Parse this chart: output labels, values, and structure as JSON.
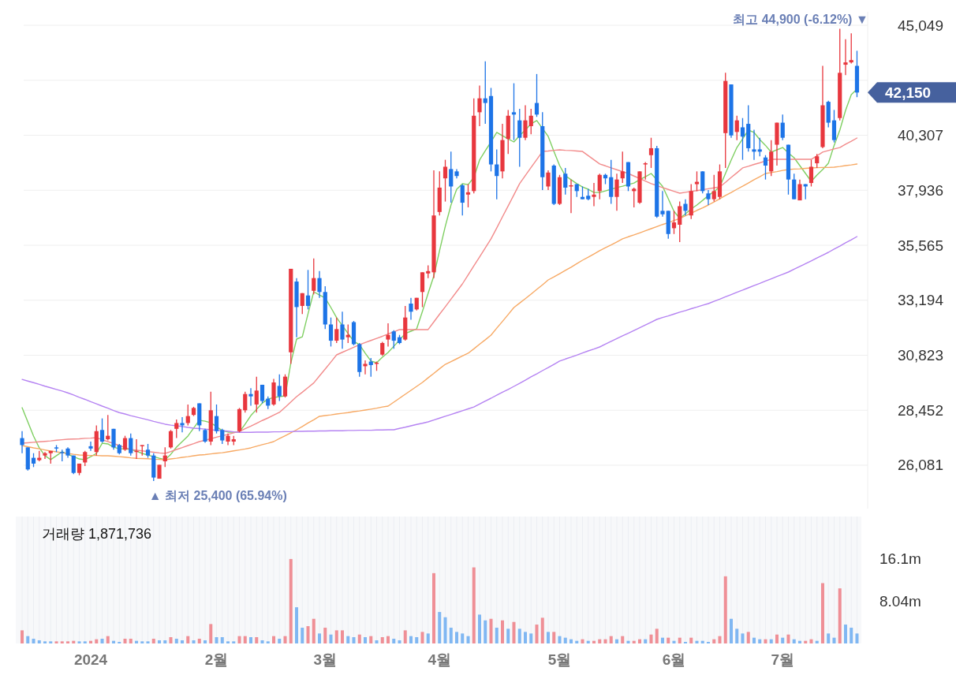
{
  "chart_data": [
    {
      "type": "candlestick",
      "categories": [
        null,
        null,
        null,
        null,
        null,
        null,
        null,
        null,
        null,
        null,
        null,
        null,
        null,
        null,
        null,
        null,
        null,
        null,
        null,
        null,
        null,
        null,
        null,
        null,
        null,
        null,
        null,
        null,
        null,
        null,
        null,
        null,
        null,
        null,
        null,
        null,
        null,
        null,
        null,
        null,
        null,
        null,
        null,
        null,
        null,
        null,
        null,
        null,
        null,
        null,
        null,
        null,
        null,
        null,
        null,
        null,
        null,
        null,
        null,
        null,
        null,
        null,
        null,
        null,
        null,
        null,
        null,
        null,
        null,
        null,
        null,
        null,
        null,
        null,
        null,
        null,
        null,
        null,
        null,
        null,
        null,
        null,
        null,
        null,
        null,
        null,
        null,
        null,
        null,
        null,
        null,
        null,
        null,
        null,
        null,
        null,
        null,
        null,
        null,
        null,
        null,
        null,
        null,
        null,
        null,
        null,
        null,
        null,
        null,
        null,
        null,
        null,
        null,
        null,
        null,
        null,
        null,
        null,
        null,
        null,
        null,
        null,
        null,
        null,
        null,
        null,
        null,
        null,
        null,
        null,
        null,
        null,
        null,
        null,
        null,
        null,
        null,
        null,
        null,
        null,
        null,
        null,
        null,
        null,
        null,
        null,
        null
      ],
      "ohlc": [
        [
          27250,
          27550,
          26600,
          26950
        ],
        [
          26850,
          26850,
          25850,
          25900
        ],
        [
          26400,
          26600,
          26000,
          26150
        ],
        [
          26300,
          26700,
          26250,
          26400
        ],
        [
          26500,
          26650,
          26350,
          26600
        ],
        [
          26600,
          26700,
          26150,
          26700
        ],
        [
          26850,
          26950,
          26650,
          26800
        ],
        [
          26650,
          26750,
          26250,
          26600
        ],
        [
          26800,
          26850,
          26400,
          26500
        ],
        [
          26500,
          26500,
          25700,
          25750
        ],
        [
          25750,
          26150,
          25650,
          26150
        ],
        [
          26200,
          26700,
          26050,
          26650
        ],
        [
          26900,
          27100,
          26700,
          26800
        ],
        [
          26650,
          27800,
          26500,
          27550
        ],
        [
          27600,
          28100,
          27050,
          27100
        ],
        [
          27200,
          28250,
          27150,
          27350
        ],
        [
          27650,
          27650,
          26750,
          26850
        ],
        [
          26950,
          27000,
          26550,
          26600
        ],
        [
          26750,
          27350,
          26700,
          27250
        ],
        [
          27250,
          27450,
          26500,
          26600
        ],
        [
          26650,
          27200,
          26350,
          26700
        ],
        [
          26900,
          26950,
          26500,
          26950
        ],
        [
          26750,
          27000,
          26400,
          26500
        ],
        [
          26500,
          26600,
          25400,
          25550
        ],
        [
          25500,
          26100,
          25500,
          26100
        ],
        [
          26250,
          26850,
          26000,
          26500
        ],
        [
          26850,
          27600,
          26800,
          27550
        ],
        [
          27650,
          28050,
          27250,
          27900
        ],
        [
          27900,
          28150,
          27500,
          27800
        ],
        [
          27900,
          28700,
          27800,
          28200
        ],
        [
          28250,
          28600,
          28200,
          28550
        ],
        [
          28750,
          28750,
          27550,
          27800
        ],
        [
          27600,
          27650,
          27050,
          27100
        ],
        [
          27100,
          29250,
          26950,
          28450
        ],
        [
          28200,
          28700,
          27450,
          27550
        ],
        [
          27600,
          27650,
          27000,
          27150
        ],
        [
          27100,
          27450,
          26950,
          27350
        ],
        [
          27100,
          27350,
          26950,
          27200
        ],
        [
          27550,
          28550,
          27500,
          28500
        ],
        [
          28450,
          29250,
          28350,
          29150
        ],
        [
          29150,
          29400,
          28650,
          29050
        ],
        [
          28700,
          29900,
          28350,
          29300
        ],
        [
          29550,
          29550,
          28750,
          28850
        ],
        [
          28950,
          29050,
          28500,
          28650
        ],
        [
          28700,
          29800,
          28650,
          29650
        ],
        [
          29500,
          30000,
          28850,
          29050
        ],
        [
          29050,
          30000,
          29000,
          29900
        ],
        [
          30950,
          34550,
          30450,
          34550
        ],
        [
          34000,
          34150,
          31600,
          32900
        ],
        [
          32950,
          33500,
          32600,
          33500
        ],
        [
          33400,
          34500,
          32800,
          32950
        ],
        [
          33600,
          35000,
          33450,
          34150
        ],
        [
          34150,
          34450,
          33300,
          33550
        ],
        [
          33550,
          33800,
          31950,
          32150
        ],
        [
          32150,
          32450,
          31200,
          31450
        ],
        [
          31450,
          32450,
          31350,
          31950
        ],
        [
          32150,
          32700,
          31100,
          31500
        ],
        [
          31600,
          32150,
          31350,
          31700
        ],
        [
          32250,
          32300,
          31250,
          31300
        ],
        [
          31300,
          31350,
          29900,
          30100
        ],
        [
          30350,
          30600,
          30000,
          30450
        ],
        [
          30550,
          30700,
          29900,
          30400
        ],
        [
          30450,
          30550,
          30150,
          30500
        ],
        [
          30850,
          31400,
          30800,
          31350
        ],
        [
          31500,
          32200,
          31200,
          31700
        ],
        [
          31850,
          31900,
          31100,
          31450
        ],
        [
          31600,
          31700,
          31300,
          31350
        ],
        [
          31500,
          32950,
          31450,
          32450
        ],
        [
          33050,
          33300,
          32350,
          32700
        ],
        [
          32800,
          33300,
          32750,
          33300
        ],
        [
          33550,
          34400,
          32900,
          34400
        ],
        [
          34350,
          34700,
          34150,
          34450
        ],
        [
          34400,
          38800,
          34150,
          36850
        ],
        [
          37000,
          38750,
          36850,
          38050
        ],
        [
          38450,
          39250,
          37450,
          38950
        ],
        [
          38850,
          39600,
          37400,
          38100
        ],
        [
          38750,
          38850,
          38450,
          38550
        ],
        [
          38150,
          38200,
          36850,
          37400
        ],
        [
          37750,
          38200,
          37200,
          37850
        ],
        [
          37900,
          41900,
          37800,
          41150
        ],
        [
          41300,
          42450,
          40700,
          41900
        ],
        [
          41900,
          43500,
          40800,
          41700
        ],
        [
          42000,
          42350,
          38750,
          39050
        ],
        [
          39050,
          39700,
          37550,
          38550
        ],
        [
          38750,
          40800,
          38450,
          40100
        ],
        [
          40150,
          41400,
          39500,
          41150
        ],
        [
          41300,
          42550,
          40100,
          41200
        ],
        [
          40950,
          41450,
          38950,
          40200
        ],
        [
          40200,
          41600,
          40100,
          40950
        ],
        [
          40700,
          41450,
          40350,
          41150
        ],
        [
          41700,
          42950,
          41100,
          41200
        ],
        [
          40700,
          41300,
          37950,
          38500
        ],
        [
          38100,
          38800,
          37950,
          38700
        ],
        [
          39000,
          39050,
          37300,
          37350
        ],
        [
          37350,
          38600,
          37300,
          38500
        ],
        [
          38650,
          38900,
          37750,
          38050
        ],
        [
          38100,
          38400,
          36950,
          38150
        ],
        [
          38200,
          38200,
          37650,
          37900
        ],
        [
          37650,
          38100,
          37550,
          37550
        ],
        [
          37700,
          38000,
          37500,
          37550
        ],
        [
          37650,
          38250,
          37250,
          37750
        ],
        [
          37900,
          38650,
          37550,
          38600
        ],
        [
          38600,
          38650,
          38200,
          38450
        ],
        [
          38500,
          39250,
          37350,
          37650
        ],
        [
          37650,
          38650,
          37050,
          38400
        ],
        [
          38450,
          39600,
          38250,
          38750
        ],
        [
          39150,
          39150,
          37900,
          38100
        ],
        [
          37900,
          38050,
          37200,
          38000
        ],
        [
          37400,
          38750,
          37350,
          38750
        ],
        [
          39050,
          39150,
          38400,
          39100
        ],
        [
          39450,
          40200,
          38900,
          39750
        ],
        [
          39750,
          39850,
          36750,
          36800
        ],
        [
          37050,
          37900,
          36800,
          36900
        ],
        [
          37050,
          37050,
          35850,
          36050
        ],
        [
          36300,
          37050,
          36050,
          36550
        ],
        [
          36450,
          37450,
          35700,
          37250
        ],
        [
          37350,
          37550,
          36850,
          37050
        ],
        [
          36850,
          38200,
          36700,
          37900
        ],
        [
          38200,
          38750,
          37900,
          38300
        ],
        [
          38750,
          38750,
          37800,
          37900
        ],
        [
          37800,
          37950,
          37300,
          37550
        ],
        [
          37550,
          38600,
          37450,
          37900
        ],
        [
          37650,
          39050,
          37550,
          38750
        ],
        [
          40400,
          43000,
          38900,
          42650
        ],
        [
          42500,
          42500,
          40200,
          40300
        ],
        [
          40450,
          41150,
          40100,
          40950
        ],
        [
          40650,
          41050,
          39250,
          40250
        ],
        [
          40800,
          41600,
          39600,
          39750
        ],
        [
          39700,
          40550,
          39250,
          39600
        ],
        [
          39700,
          40200,
          39400,
          39600
        ],
        [
          39350,
          39450,
          38400,
          39000
        ],
        [
          38750,
          40100,
          38550,
          39600
        ],
        [
          39900,
          40850,
          39000,
          40850
        ],
        [
          40850,
          41200,
          40100,
          40200
        ],
        [
          39900,
          39900,
          37750,
          38400
        ],
        [
          38400,
          38650,
          37550,
          37550
        ],
        [
          37500,
          38400,
          37500,
          38200
        ],
        [
          38200,
          38200,
          37550,
          38100
        ],
        [
          38250,
          39250,
          38100,
          38950
        ],
        [
          39100,
          39500,
          38900,
          39400
        ],
        [
          39800,
          43300,
          39750,
          41600
        ],
        [
          41750,
          41800,
          40650,
          40850
        ],
        [
          40950,
          41400,
          40000,
          40100
        ],
        [
          41050,
          44900,
          40950,
          43000
        ],
        [
          43350,
          44450,
          42900,
          43450
        ],
        [
          43450,
          44700,
          43400,
          43550
        ],
        [
          43300,
          43950,
          41950,
          42150
        ]
      ],
      "series": [
        {
          "type": "line",
          "color": "#7fcf62",
          "values": [
            28560,
            27950,
            27340,
            26830,
            26490,
            26320,
            26490,
            26660,
            26550,
            26450,
            26350,
            26320,
            26450,
            26590,
            27030,
            27000,
            26860,
            26790,
            26790,
            26760,
            26690,
            26590,
            26520,
            26450,
            26380,
            26320,
            26550,
            26860,
            27100,
            27340,
            27680,
            28020,
            27980,
            27910,
            27740,
            27570,
            27510,
            27510,
            27510,
            27850,
            28220,
            28490,
            28760,
            28930,
            29000,
            29040,
            29070,
            30500,
            31520,
            31620,
            32610,
            33560,
            33420,
            33290,
            32880,
            32440,
            32100,
            31760,
            31420,
            31280,
            30910,
            30570,
            30500,
            30740,
            30940,
            31210,
            31480,
            31760,
            31860,
            31960,
            32710,
            33490,
            34240,
            35330,
            36380,
            37300,
            37980,
            38220,
            38180,
            38490,
            39240,
            39640,
            40020,
            40430,
            40290,
            40150,
            40020,
            40290,
            40530,
            40800,
            40940,
            40600,
            40260,
            39610,
            39000,
            38560,
            38390,
            38220,
            38080,
            37980,
            37840,
            37840,
            37910,
            37980,
            38050,
            38110,
            38180,
            38250,
            38390,
            38520,
            38660,
            38390,
            38110,
            37570,
            37030,
            36720,
            36920,
            37130,
            37300,
            37500,
            37710,
            37880,
            38080,
            38660,
            39240,
            39780,
            40150,
            40530,
            40430,
            40120,
            39870,
            39580,
            39680,
            39780,
            39540,
            39340,
            39000,
            38660,
            38320,
            38590,
            38830,
            39100,
            39870,
            40530,
            41380,
            42060,
            42300
          ]
        },
        {
          "type": "line",
          "color": "#f28b8b",
          "values": [
            27030,
            27050,
            27070,
            27090,
            27110,
            27130,
            27160,
            27180,
            27200,
            27210,
            27220,
            27240,
            27250,
            27270,
            27180,
            27100,
            27020,
            26930,
            26840,
            26760,
            26730,
            26700,
            26670,
            26640,
            26610,
            26590,
            26670,
            26760,
            26840,
            26930,
            27010,
            27100,
            27160,
            27220,
            27290,
            27350,
            27410,
            27480,
            27540,
            27660,
            27770,
            27890,
            28010,
            28120,
            28240,
            28360,
            28580,
            28810,
            29040,
            29230,
            29430,
            29630,
            29930,
            30230,
            30530,
            30840,
            30950,
            31060,
            31170,
            31280,
            31370,
            31460,
            31550,
            31640,
            31740,
            31830,
            31930,
            31930,
            31930,
            31930,
            31930,
            31930,
            32260,
            32590,
            32910,
            33240,
            33570,
            33900,
            34290,
            34680,
            35060,
            35450,
            35840,
            36310,
            36790,
            37260,
            37740,
            38220,
            38570,
            38920,
            39260,
            39610,
            39630,
            39660,
            39680,
            39660,
            39650,
            39630,
            39610,
            39430,
            39250,
            39070,
            38990,
            38900,
            38820,
            38740,
            38660,
            38550,
            38440,
            38330,
            38220,
            38140,
            38050,
            37970,
            37890,
            37810,
            37850,
            37890,
            37920,
            37960,
            38000,
            38040,
            38080,
            38280,
            38490,
            38690,
            38900,
            38970,
            39050,
            39120,
            39200,
            39270,
            39270,
            39270,
            39270,
            39270,
            39270,
            39270,
            39270,
            39420,
            39580,
            39650,
            39720,
            39780,
            39920,
            40050,
            40190
          ]
        },
        {
          "type": "line",
          "color": "#f7a964",
          "values": [
            26930,
            26880,
            26830,
            26790,
            26740,
            26690,
            26660,
            26620,
            26590,
            26550,
            26520,
            26510,
            26500,
            26500,
            26490,
            26490,
            26470,
            26450,
            26430,
            26400,
            26380,
            26370,
            26360,
            26340,
            26330,
            26320,
            26350,
            26380,
            26420,
            26450,
            26490,
            26520,
            26540,
            26570,
            26600,
            26620,
            26660,
            26700,
            26740,
            26780,
            26830,
            26900,
            26970,
            27030,
            27100,
            27230,
            27350,
            27480,
            27610,
            27750,
            27900,
            28040,
            28190,
            28220,
            28250,
            28290,
            28320,
            28350,
            28390,
            28420,
            28460,
            28500,
            28540,
            28590,
            28630,
            28800,
            28970,
            29140,
            29310,
            29480,
            29650,
            29850,
            30040,
            30240,
            30430,
            30550,
            30670,
            30790,
            30910,
            31100,
            31300,
            31490,
            31690,
            31990,
            32280,
            32580,
            32880,
            33070,
            33260,
            33460,
            33660,
            33860,
            34070,
            34200,
            34340,
            34480,
            34620,
            34770,
            34920,
            35050,
            35190,
            35330,
            35460,
            35580,
            35710,
            35840,
            35930,
            36010,
            36100,
            36190,
            36280,
            36370,
            36460,
            36540,
            36630,
            36720,
            36840,
            36950,
            37070,
            37180,
            37300,
            37430,
            37570,
            37710,
            37840,
            37980,
            38110,
            38250,
            38390,
            38520,
            38660,
            38700,
            38740,
            38790,
            38830,
            38850,
            38860,
            38880,
            38900,
            38910,
            38920,
            38920,
            38930,
            38960,
            39000,
            39030,
            39070
          ]
        },
        {
          "type": "line",
          "color": "#b583f2",
          "values": [
            29780,
            29710,
            29640,
            29570,
            29490,
            29420,
            29350,
            29280,
            29200,
            29110,
            29010,
            28920,
            28820,
            28730,
            28630,
            28540,
            28440,
            28350,
            28290,
            28220,
            28160,
            28100,
            28040,
            27970,
            27910,
            27850,
            27810,
            27780,
            27750,
            27710,
            27680,
            27660,
            27640,
            27610,
            27590,
            27570,
            27550,
            27520,
            27500,
            27500,
            27500,
            27510,
            27510,
            27510,
            27520,
            27520,
            27530,
            27530,
            27540,
            27540,
            27550,
            27550,
            27560,
            27560,
            27570,
            27570,
            27570,
            27580,
            27580,
            27590,
            27590,
            27590,
            27600,
            27600,
            27610,
            27610,
            27670,
            27720,
            27780,
            27840,
            27890,
            27950,
            28030,
            28110,
            28190,
            28270,
            28350,
            28430,
            28510,
            28590,
            28720,
            28850,
            28970,
            29100,
            29230,
            29350,
            29480,
            29610,
            29750,
            29890,
            30020,
            30160,
            30290,
            30430,
            30570,
            30660,
            30740,
            30830,
            30920,
            31010,
            31090,
            31180,
            31300,
            31420,
            31540,
            31660,
            31770,
            31890,
            32010,
            32130,
            32250,
            32370,
            32450,
            32520,
            32600,
            32680,
            32750,
            32830,
            32900,
            32980,
            33050,
            33150,
            33240,
            33340,
            33440,
            33540,
            33630,
            33730,
            33830,
            33920,
            34020,
            34120,
            34220,
            34310,
            34410,
            34530,
            34650,
            34770,
            34890,
            35020,
            35140,
            35260,
            35400,
            35530,
            35670,
            35800,
            35940
          ]
        }
      ],
      "ylim": [
        24210,
        45630
      ],
      "yticks": [
        {
          "value": 26081,
          "label": "26,081"
        },
        {
          "value": 28452,
          "label": "28,452"
        },
        {
          "value": 30823,
          "label": "30,823"
        },
        {
          "value": 33194,
          "label": "33,194"
        },
        {
          "value": 35565,
          "label": "35,565"
        },
        {
          "value": 37936,
          "label": "37,936"
        },
        {
          "value": 40307,
          "label": "40,307"
        },
        {
          "value": 42678,
          "label": null
        },
        {
          "value": 45049,
          "label": "45,049"
        }
      ],
      "grid": "y",
      "tick_labels": "y",
      "annotations": [
        "최고 44,900 (-6.12%) ▼",
        "▲ 최저 25,400 (65.94%)",
        "42,150"
      ]
    },
    {
      "type": "bar",
      "title": "거래량 1,871,736",
      "categories": [
        null,
        null,
        null,
        null,
        null,
        null,
        null,
        null,
        null,
        null,
        null,
        null,
        "2024",
        null,
        null,
        null,
        null,
        null,
        null,
        null,
        null,
        null,
        null,
        null,
        null,
        null,
        null,
        null,
        null,
        null,
        null,
        null,
        null,
        null,
        "2월",
        null,
        null,
        null,
        null,
        null,
        null,
        null,
        null,
        null,
        null,
        null,
        null,
        null,
        null,
        null,
        null,
        null,
        null,
        "3월",
        null,
        null,
        null,
        null,
        null,
        null,
        null,
        null,
        null,
        null,
        null,
        null,
        null,
        null,
        null,
        null,
        null,
        null,
        null,
        "4월",
        null,
        null,
        null,
        null,
        null,
        null,
        null,
        null,
        null,
        null,
        null,
        null,
        null,
        null,
        null,
        null,
        null,
        null,
        null,
        null,
        "5월",
        null,
        null,
        null,
        null,
        null,
        null,
        null,
        null,
        null,
        null,
        null,
        null,
        null,
        null,
        null,
        null,
        null,
        null,
        null,
        "6월",
        null,
        null,
        null,
        null,
        null,
        null,
        null,
        null,
        null,
        null,
        null,
        null,
        null,
        null,
        null,
        null,
        null,
        null,
        "7월",
        null,
        null,
        null,
        null,
        null,
        null,
        null,
        null,
        null,
        null,
        null,
        null,
        null
      ],
      "values": [
        2.5,
        1.4,
        0.9,
        0.6,
        0.4,
        0.4,
        0.4,
        0.4,
        0.4,
        0.5,
        0.4,
        0.4,
        0.5,
        0.8,
        0.9,
        1.4,
        0.5,
        0.3,
        0.9,
        0.9,
        0.5,
        0.4,
        0.4,
        0.9,
        0.6,
        0.6,
        1.2,
        0.9,
        0.6,
        1.4,
        0.6,
        0.9,
        0.6,
        3.7,
        1.2,
        1.2,
        0.4,
        0.4,
        1.4,
        1.4,
        1.2,
        1.2,
        0.6,
        0.4,
        1.4,
        0.9,
        1.4,
        16.1,
        6.9,
        3.0,
        3.3,
        4.7,
        1.9,
        3.0,
        1.7,
        2.5,
        2.5,
        1.4,
        1.2,
        1.7,
        1.2,
        1.4,
        0.6,
        1.2,
        1.4,
        0.9,
        0.6,
        2.5,
        1.4,
        1.2,
        2.2,
        1.9,
        13.4,
        6.0,
        5.0,
        3.0,
        2.2,
        1.9,
        1.4,
        14.5,
        5.5,
        4.4,
        4.7,
        3.0,
        4.4,
        2.8,
        4.1,
        2.8,
        2.2,
        1.9,
        3.6,
        4.9,
        2.2,
        2.2,
        1.4,
        1.1,
        0.8,
        0.5,
        0.8,
        0.5,
        0.5,
        0.8,
        0.8,
        1.4,
        0.8,
        1.4,
        0.5,
        0.5,
        0.8,
        0.8,
        1.7,
        2.8,
        1.1,
        1.1,
        0.5,
        1.1,
        0.3,
        1.1,
        0.5,
        0.5,
        0.3,
        0.8,
        1.4,
        12.8,
        4.7,
        2.8,
        1.9,
        2.2,
        1.1,
        0.8,
        0.8,
        0.8,
        1.7,
        1.1,
        1.7,
        0.8,
        0.5,
        0.5,
        0.8,
        0.5,
        11.5,
        1.9,
        1.1,
        10.5,
        3.6,
        3.0,
        1.9
      ],
      "colors": [
        "#ef8f96",
        "#80b7f2",
        "#80b7f2",
        "#80b7f2",
        "#80b7f2",
        "#80b7f2",
        "#ef8f96",
        "#ef8f96",
        "#ef8f96",
        "#ef8f96",
        "#80b7f2",
        "#80b7f2",
        "#ef8f96",
        "#ef8f96",
        "#80b7f2",
        "#ef8f96",
        "#80b7f2",
        "#80b7f2",
        "#ef8f96",
        "#ef8f96",
        "#80b7f2",
        "#80b7f2",
        "#80b7f2",
        "#ef8f96",
        "#80b7f2",
        "#80b7f2",
        "#ef8f96",
        "#80b7f2",
        "#80b7f2",
        "#ef8f96",
        "#80b7f2",
        "#ef8f96",
        "#80b7f2",
        "#ef8f96",
        "#80b7f2",
        "#80b7f2",
        "#80b7f2",
        "#80b7f2",
        "#ef8f96",
        "#ef8f96",
        "#80b7f2",
        "#ef8f96",
        "#80b7f2",
        "#80b7f2",
        "#ef8f96",
        "#80b7f2",
        "#ef8f96",
        "#ef8f96",
        "#80b7f2",
        "#80b7f2",
        "#ef8f96",
        "#ef8f96",
        "#80b7f2",
        "#ef8f96",
        "#80b7f2",
        "#ef8f96",
        "#ef8f96",
        "#80b7f2",
        "#80b7f2",
        "#ef8f96",
        "#80b7f2",
        "#ef8f96",
        "#80b7f2",
        "#ef8f96",
        "#ef8f96",
        "#80b7f2",
        "#80b7f2",
        "#ef8f96",
        "#80b7f2",
        "#80b7f2",
        "#ef8f96",
        "#80b7f2",
        "#ef8f96",
        "#80b7f2",
        "#80b7f2",
        "#80b7f2",
        "#80b7f2",
        "#80b7f2",
        "#80b7f2",
        "#ef8f96",
        "#80b7f2",
        "#80b7f2",
        "#ef8f96",
        "#80b7f2",
        "#ef8f96",
        "#80b7f2",
        "#ef8f96",
        "#80b7f2",
        "#80b7f2",
        "#80b7f2",
        "#ef8f96",
        "#ef8f96",
        "#80b7f2",
        "#ef8f96",
        "#80b7f2",
        "#80b7f2",
        "#80b7f2",
        "#80b7f2",
        "#ef8f96",
        "#80b7f2",
        "#ef8f96",
        "#ef8f96",
        "#ef8f96",
        "#ef8f96",
        "#80b7f2",
        "#ef8f96",
        "#80b7f2",
        "#ef8f96",
        "#ef8f96",
        "#80b7f2",
        "#ef8f96",
        "#ef8f96",
        "#80b7f2",
        "#ef8f96",
        "#80b7f2",
        "#ef8f96",
        "#80b7f2",
        "#ef8f96",
        "#80b7f2",
        "#80b7f2",
        "#80b7f2",
        "#ef8f96",
        "#ef8f96",
        "#ef8f96",
        "#80b7f2",
        "#80b7f2",
        "#80b7f2",
        "#ef8f96",
        "#80b7f2",
        "#80b7f2",
        "#ef8f96",
        "#80b7f2",
        "#ef8f96",
        "#80b7f2",
        "#ef8f96",
        "#80b7f2",
        "#80b7f2",
        "#ef8f96",
        "#ef8f96",
        "#80b7f2",
        "#ef8f96",
        "#80b7f2",
        "#80b7f2",
        "#ef8f96",
        "#80b7f2",
        "#80b7f2",
        "#80b7f2"
      ],
      "ylim": [
        0,
        24.2
      ],
      "yticks": [
        {
          "value": 8.04,
          "label": "8.04m"
        },
        {
          "value": 16.1,
          "label": "16.1m"
        }
      ],
      "grid": "x"
    }
  ]
}
